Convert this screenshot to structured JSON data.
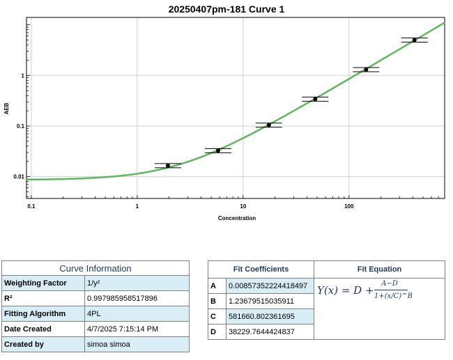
{
  "chart_data": {
    "type": "scatter",
    "title": "20250407pm-181 Curve 1",
    "xlabel": "Concentration",
    "ylabel": "AEB",
    "xscale": "log",
    "yscale": "log",
    "xlim": [
      0.09,
      800
    ],
    "ylim": [
      0.0037,
      14
    ],
    "grid": true,
    "legend": "none",
    "x_ticks": [
      {
        "value": 0.1,
        "label": "0.1"
      },
      {
        "value": 1,
        "label": "1"
      },
      {
        "value": 10,
        "label": "10"
      },
      {
        "value": 100,
        "label": "100"
      }
    ],
    "y_ticks": [
      {
        "value": 0.01,
        "label": "0.01"
      },
      {
        "value": 0.1,
        "label": "0.1"
      },
      {
        "value": 1,
        "label": "1"
      }
    ],
    "points": [
      {
        "x": 1.95,
        "y": 0.0165
      },
      {
        "x": 5.8,
        "y": 0.0325
      },
      {
        "x": 17.5,
        "y": 0.104
      },
      {
        "x": 48,
        "y": 0.34
      },
      {
        "x": 145,
        "y": 1.3
      },
      {
        "x": 415,
        "y": 5.0
      }
    ],
    "fit_model": "4PL",
    "colors": {
      "curve": "#5cb85c",
      "points": "#000000",
      "grid": "#d0d0d0"
    }
  },
  "curve_info": {
    "title": "Curve Information",
    "rows": [
      {
        "label": "Weighting Factor",
        "value": "1/y²"
      },
      {
        "label": "R²",
        "value": "0.997985958517896"
      },
      {
        "label": "Fitting Algorithm",
        "value": "4PL"
      },
      {
        "label": "Date Created",
        "value": "4/7/2025 7:15:14 PM"
      },
      {
        "label": "Created by",
        "value": "simoa simoa"
      }
    ]
  },
  "fit": {
    "coef_title": "Fit Coefficients",
    "eq_title": "Fit Equation",
    "coefficients": [
      {
        "name": "A",
        "value": "0.00857352224418497"
      },
      {
        "name": "B",
        "value": "1.23679515035911"
      },
      {
        "name": "C",
        "value": "581660.802361695"
      },
      {
        "name": "D",
        "value": "38229.7644424837"
      }
    ],
    "equation": {
      "lhs": "Y(x) = D +",
      "numerator": "A−D",
      "denominator": "1+(x/C)^B"
    }
  }
}
